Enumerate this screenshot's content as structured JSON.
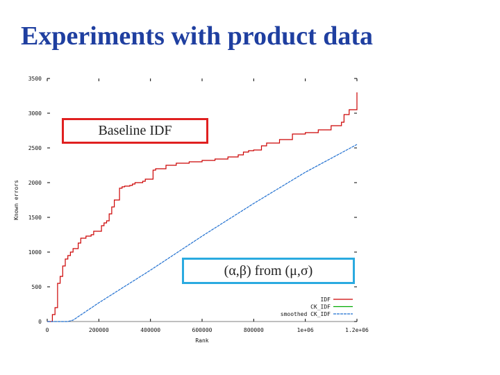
{
  "slide": {
    "title": "Experiments with product data"
  },
  "callouts": {
    "idf_label": "Baseline IDF",
    "ck_label": "(α,β) from (μ,σ)"
  },
  "chart_data": {
    "type": "line",
    "xlabel": "Rank",
    "ylabel": "Known errors",
    "xlim": [
      0,
      1200000
    ],
    "ylim": [
      0,
      3500
    ],
    "x_ticks": [
      0,
      200000,
      400000,
      600000,
      800000,
      1000000,
      1200000
    ],
    "x_tick_labels": [
      "0",
      "200000",
      "400000",
      "600000",
      "800000",
      "1e+06",
      "1.2e+06"
    ],
    "y_ticks": [
      0,
      500,
      1000,
      1500,
      2000,
      2500,
      3000,
      3500
    ],
    "y_tick_labels": [
      "0",
      "500",
      "1000",
      "1500",
      "2000",
      "2500",
      "3000",
      "3500"
    ],
    "grid": false,
    "legend_position": "bottom-right",
    "series": [
      {
        "name": "IDF",
        "color": "#cc0000",
        "dash": "solid",
        "x": [
          0,
          20000,
          30000,
          40000,
          50000,
          60000,
          70000,
          80000,
          90000,
          100000,
          120000,
          130000,
          150000,
          170000,
          180000,
          200000,
          210000,
          220000,
          230000,
          240000,
          250000,
          260000,
          280000,
          290000,
          300000,
          320000,
          330000,
          340000,
          360000,
          370000,
          380000,
          400000,
          410000,
          420000,
          440000,
          460000,
          500000,
          550000,
          600000,
          650000,
          700000,
          740000,
          760000,
          780000,
          800000,
          830000,
          850000,
          900000,
          950000,
          1000000,
          1050000,
          1100000,
          1140000,
          1150000,
          1170000,
          1200000
        ],
        "y": [
          0,
          100,
          200,
          550,
          650,
          800,
          900,
          950,
          1000,
          1050,
          1130,
          1200,
          1230,
          1250,
          1300,
          1300,
          1380,
          1420,
          1450,
          1550,
          1650,
          1750,
          1920,
          1940,
          1950,
          1960,
          1980,
          2000,
          2000,
          2020,
          2050,
          2050,
          2180,
          2200,
          2200,
          2250,
          2280,
          2300,
          2320,
          2340,
          2370,
          2400,
          2440,
          2460,
          2470,
          2530,
          2570,
          2620,
          2700,
          2720,
          2760,
          2820,
          2870,
          2980,
          3050,
          3300
        ]
      },
      {
        "name": "CK_IDF",
        "color": "#00aa00",
        "dash": "solid",
        "x": [],
        "y": []
      },
      {
        "name": "smoothed CK_IDF",
        "color": "#1f6fd0",
        "dash": "4,1",
        "x": [
          0,
          20000,
          40000,
          60000,
          80000,
          100000,
          200000,
          400000,
          600000,
          800000,
          1000000,
          1200000
        ],
        "y": [
          0,
          0,
          0,
          0,
          0,
          20,
          270,
          740,
          1230,
          1700,
          2150,
          2550
        ]
      }
    ]
  }
}
